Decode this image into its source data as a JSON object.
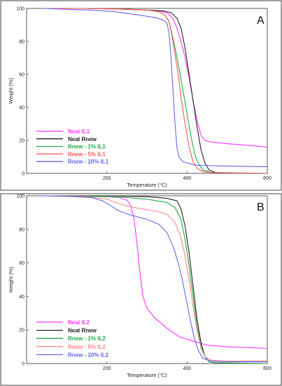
{
  "chart_data": [
    {
      "type": "line",
      "panel_label": "A",
      "xlabel": "Temperature (°C)",
      "ylabel": "Weight (%)",
      "xlim": [
        0,
        600
      ],
      "ylim": [
        0,
        100
      ],
      "xticks": [
        200,
        400,
        600
      ],
      "yticks": [
        0,
        20,
        40,
        60,
        80,
        100
      ],
      "grid": false,
      "legend_position": "bottom-left",
      "series": [
        {
          "name": "Neat IL1",
          "color": "#ff33ff",
          "points": [
            [
              40,
              100
            ],
            [
              150,
              100
            ],
            [
              250,
              99.5
            ],
            [
              300,
              99
            ],
            [
              330,
              98.5
            ],
            [
              350,
              97.5
            ],
            [
              365,
              94
            ],
            [
              375,
              88
            ],
            [
              385,
              80
            ],
            [
              395,
              70
            ],
            [
              405,
              58
            ],
            [
              415,
              44
            ],
            [
              425,
              32
            ],
            [
              435,
              23
            ],
            [
              445,
              20
            ],
            [
              460,
              19
            ],
            [
              500,
              18
            ],
            [
              550,
              17
            ],
            [
              600,
              16
            ]
          ]
        },
        {
          "name": "Neat Rnew",
          "color": "#222222",
          "points": [
            [
              40,
              100
            ],
            [
              150,
              100
            ],
            [
              250,
              99.5
            ],
            [
              300,
              99
            ],
            [
              340,
              98.5
            ],
            [
              360,
              97.5
            ],
            [
              375,
              94
            ],
            [
              385,
              88
            ],
            [
              395,
              76
            ],
            [
              405,
              60
            ],
            [
              415,
              44
            ],
            [
              425,
              28
            ],
            [
              435,
              14
            ],
            [
              445,
              6
            ],
            [
              455,
              2
            ],
            [
              470,
              0.5
            ],
            [
              480,
              0
            ],
            [
              600,
              0
            ]
          ]
        },
        {
          "name": "Rnew - 1% IL1",
          "color": "#22aa44",
          "points": [
            [
              40,
              100
            ],
            [
              150,
              100
            ],
            [
              250,
              99.5
            ],
            [
              300,
              99
            ],
            [
              330,
              98
            ],
            [
              345,
              96
            ],
            [
              355,
              92
            ],
            [
              362,
              85
            ],
            [
              370,
              76
            ],
            [
              380,
              64
            ],
            [
              390,
              50
            ],
            [
              400,
              36
            ],
            [
              410,
              22
            ],
            [
              420,
              11
            ],
            [
              430,
              5
            ],
            [
              440,
              2
            ],
            [
              460,
              0.5
            ],
            [
              600,
              0
            ]
          ]
        },
        {
          "name": "Rnew - 5% IL1",
          "color": "#ff5555",
          "points": [
            [
              40,
              100
            ],
            [
              150,
              100
            ],
            [
              250,
              99.5
            ],
            [
              300,
              99
            ],
            [
              330,
              98
            ],
            [
              345,
              96
            ],
            [
              355,
              92
            ],
            [
              362,
              84
            ],
            [
              370,
              72
            ],
            [
              378,
              60
            ],
            [
              385,
              46
            ],
            [
              395,
              30
            ],
            [
              405,
              16
            ],
            [
              415,
              7
            ],
            [
              425,
              3
            ],
            [
              440,
              1
            ],
            [
              460,
              0.5
            ],
            [
              600,
              0
            ]
          ]
        },
        {
          "name": "Rnew - 20% IL1",
          "color": "#6666ee",
          "points": [
            [
              40,
              100
            ],
            [
              100,
              99.5
            ],
            [
              160,
              99
            ],
            [
              220,
              98
            ],
            [
              280,
              96
            ],
            [
              320,
              94.5
            ],
            [
              340,
              93
            ],
            [
              350,
              91
            ],
            [
              355,
              85
            ],
            [
              360,
              70
            ],
            [
              365,
              50
            ],
            [
              370,
              30
            ],
            [
              375,
              15
            ],
            [
              380,
              10
            ],
            [
              390,
              7
            ],
            [
              420,
              5
            ],
            [
              480,
              4.5
            ],
            [
              600,
              4
            ]
          ]
        }
      ]
    },
    {
      "type": "line",
      "panel_label": "B",
      "xlabel": "Temperature (°C)",
      "ylabel": "Weight (%)",
      "xlim": [
        0,
        600
      ],
      "ylim": [
        0,
        100
      ],
      "xticks": [
        200,
        400,
        600
      ],
      "yticks": [
        0,
        20,
        40,
        60,
        80,
        100
      ],
      "grid": false,
      "legend_position": "bottom-left",
      "series": [
        {
          "name": "Neat IL2",
          "color": "#ff33ff",
          "points": [
            [
              40,
              100
            ],
            [
              150,
              100
            ],
            [
              200,
              99.5
            ],
            [
              230,
              99
            ],
            [
              250,
              97.5
            ],
            [
              260,
              94
            ],
            [
              268,
              86
            ],
            [
              275,
              72
            ],
            [
              282,
              55
            ],
            [
              290,
              40
            ],
            [
              300,
              33
            ],
            [
              320,
              27
            ],
            [
              350,
              21
            ],
            [
              380,
              16
            ],
            [
              420,
              13
            ],
            [
              450,
              11
            ],
            [
              500,
              10
            ],
            [
              600,
              9
            ]
          ]
        },
        {
          "name": "Neat Rnew",
          "color": "#222222",
          "points": [
            [
              40,
              100
            ],
            [
              200,
              100
            ],
            [
              300,
              99.5
            ],
            [
              350,
              98.5
            ],
            [
              375,
              97
            ],
            [
              385,
              92
            ],
            [
              395,
              82
            ],
            [
              405,
              66
            ],
            [
              415,
              46
            ],
            [
              425,
              26
            ],
            [
              435,
              12
            ],
            [
              445,
              4
            ],
            [
              455,
              1
            ],
            [
              470,
              0.5
            ],
            [
              500,
              0
            ],
            [
              600,
              0
            ]
          ]
        },
        {
          "name": "Rnew - 1% IL2",
          "color": "#22aa44",
          "points": [
            [
              40,
              100
            ],
            [
              200,
              99.5
            ],
            [
              250,
              99
            ],
            [
              300,
              98
            ],
            [
              350,
              96
            ],
            [
              370,
              93
            ],
            [
              385,
              86
            ],
            [
              395,
              74
            ],
            [
              405,
              58
            ],
            [
              415,
              40
            ],
            [
              425,
              22
            ],
            [
              435,
              10
            ],
            [
              445,
              4
            ],
            [
              455,
              1
            ],
            [
              470,
              0.5
            ],
            [
              600,
              0
            ]
          ]
        },
        {
          "name": "Rnew - 5% IL2",
          "color": "#ff8888",
          "points": [
            [
              40,
              100
            ],
            [
              150,
              99.5
            ],
            [
              200,
              98
            ],
            [
              240,
              94.5
            ],
            [
              280,
              92.5
            ],
            [
              320,
              91
            ],
            [
              350,
              89
            ],
            [
              370,
              84
            ],
            [
              385,
              75
            ],
            [
              395,
              64
            ],
            [
              405,
              50
            ],
            [
              415,
              34
            ],
            [
              425,
              20
            ],
            [
              435,
              9
            ],
            [
              445,
              4
            ],
            [
              460,
              2
            ],
            [
              500,
              1.5
            ],
            [
              600,
              1.5
            ]
          ]
        },
        {
          "name": "Rnew - 20% IL2",
          "color": "#6666ee",
          "points": [
            [
              40,
              100
            ],
            [
              120,
              99.5
            ],
            [
              160,
              99
            ],
            [
              190,
              97
            ],
            [
              210,
              94
            ],
            [
              230,
              91
            ],
            [
              260,
              88.5
            ],
            [
              300,
              86
            ],
            [
              330,
              83
            ],
            [
              350,
              78
            ],
            [
              365,
              70
            ],
            [
              378,
              60
            ],
            [
              388,
              50
            ],
            [
              398,
              38
            ],
            [
              408,
              26
            ],
            [
              418,
              15
            ],
            [
              428,
              8
            ],
            [
              440,
              3
            ],
            [
              460,
              1.5
            ],
            [
              500,
              1
            ],
            [
              600,
              1
            ]
          ]
        }
      ]
    }
  ]
}
